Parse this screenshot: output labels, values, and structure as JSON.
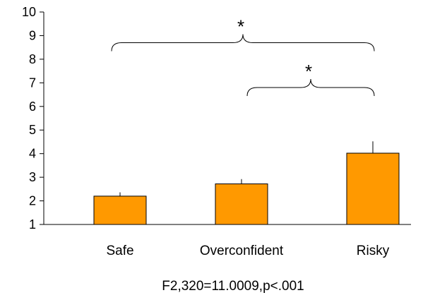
{
  "chart_data": {
    "type": "bar",
    "categories": [
      "Safe",
      "Overconfident",
      "Risky"
    ],
    "values": [
      2.2,
      2.72,
      4.02
    ],
    "error_upper": [
      0.16,
      0.2,
      0.5
    ],
    "ylim": [
      1,
      10
    ],
    "yticks": [
      "1",
      "2",
      "3",
      "4",
      "5",
      "6",
      "7",
      "8",
      "9",
      "10"
    ],
    "bar_color": "#FF9900",
    "grid": false,
    "annotations": [
      {
        "text": "*",
        "from": "Safe",
        "to": "Risky",
        "level": 8.7
      },
      {
        "text": "*",
        "from": "Overconfident",
        "to": "Risky",
        "level": 6.8
      }
    ],
    "footnote": "F2,320=11.0009,p<.001"
  }
}
